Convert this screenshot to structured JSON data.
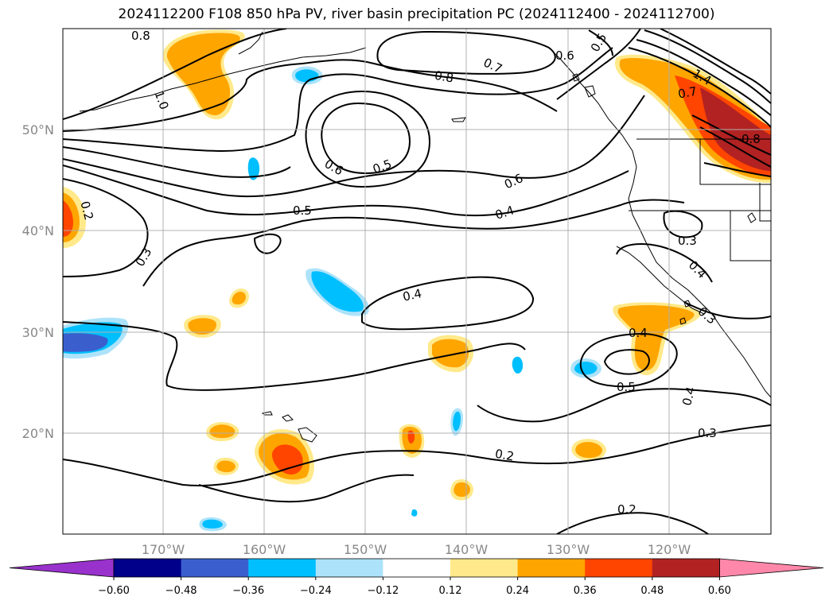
{
  "title": "2024112200 F108 850 hPa PV, river basin precipitation PC (2024112400 - 2024112700)",
  "lat_labels": [
    "50°N",
    "40°N",
    "30°N",
    "20°N"
  ],
  "lon_labels": [
    "170°W",
    "160°W",
    "150°W",
    "140°W",
    "130°W",
    "120°W"
  ],
  "contour_labels": [
    "0.8",
    "1.0",
    "0.8",
    "0.7",
    "0.6",
    "0.5",
    "1.4",
    "0.7",
    "0.8",
    "0.6",
    "0.5",
    "0.6",
    "0.5",
    "0.4",
    "0.2",
    "0.3",
    "0.3",
    "0.4",
    "0.4",
    "0.4",
    "0.5",
    "0.3",
    "0.4",
    "0.3",
    "0.2",
    "0.2"
  ],
  "colorbar": {
    "tick_labels": [
      "−0.60",
      "−0.48",
      "−0.36",
      "−0.24",
      "−0.12",
      "0.12",
      "0.24",
      "0.36",
      "0.48",
      "0.60"
    ],
    "colors": [
      "#9932CC",
      "#00008B",
      "#3A5FCD",
      "#00BFFF",
      "#ADE3FA",
      "#FFFFFF",
      "#FFE98A",
      "#FFA500",
      "#FF4500",
      "#B22222",
      "#FF88AA"
    ]
  }
}
